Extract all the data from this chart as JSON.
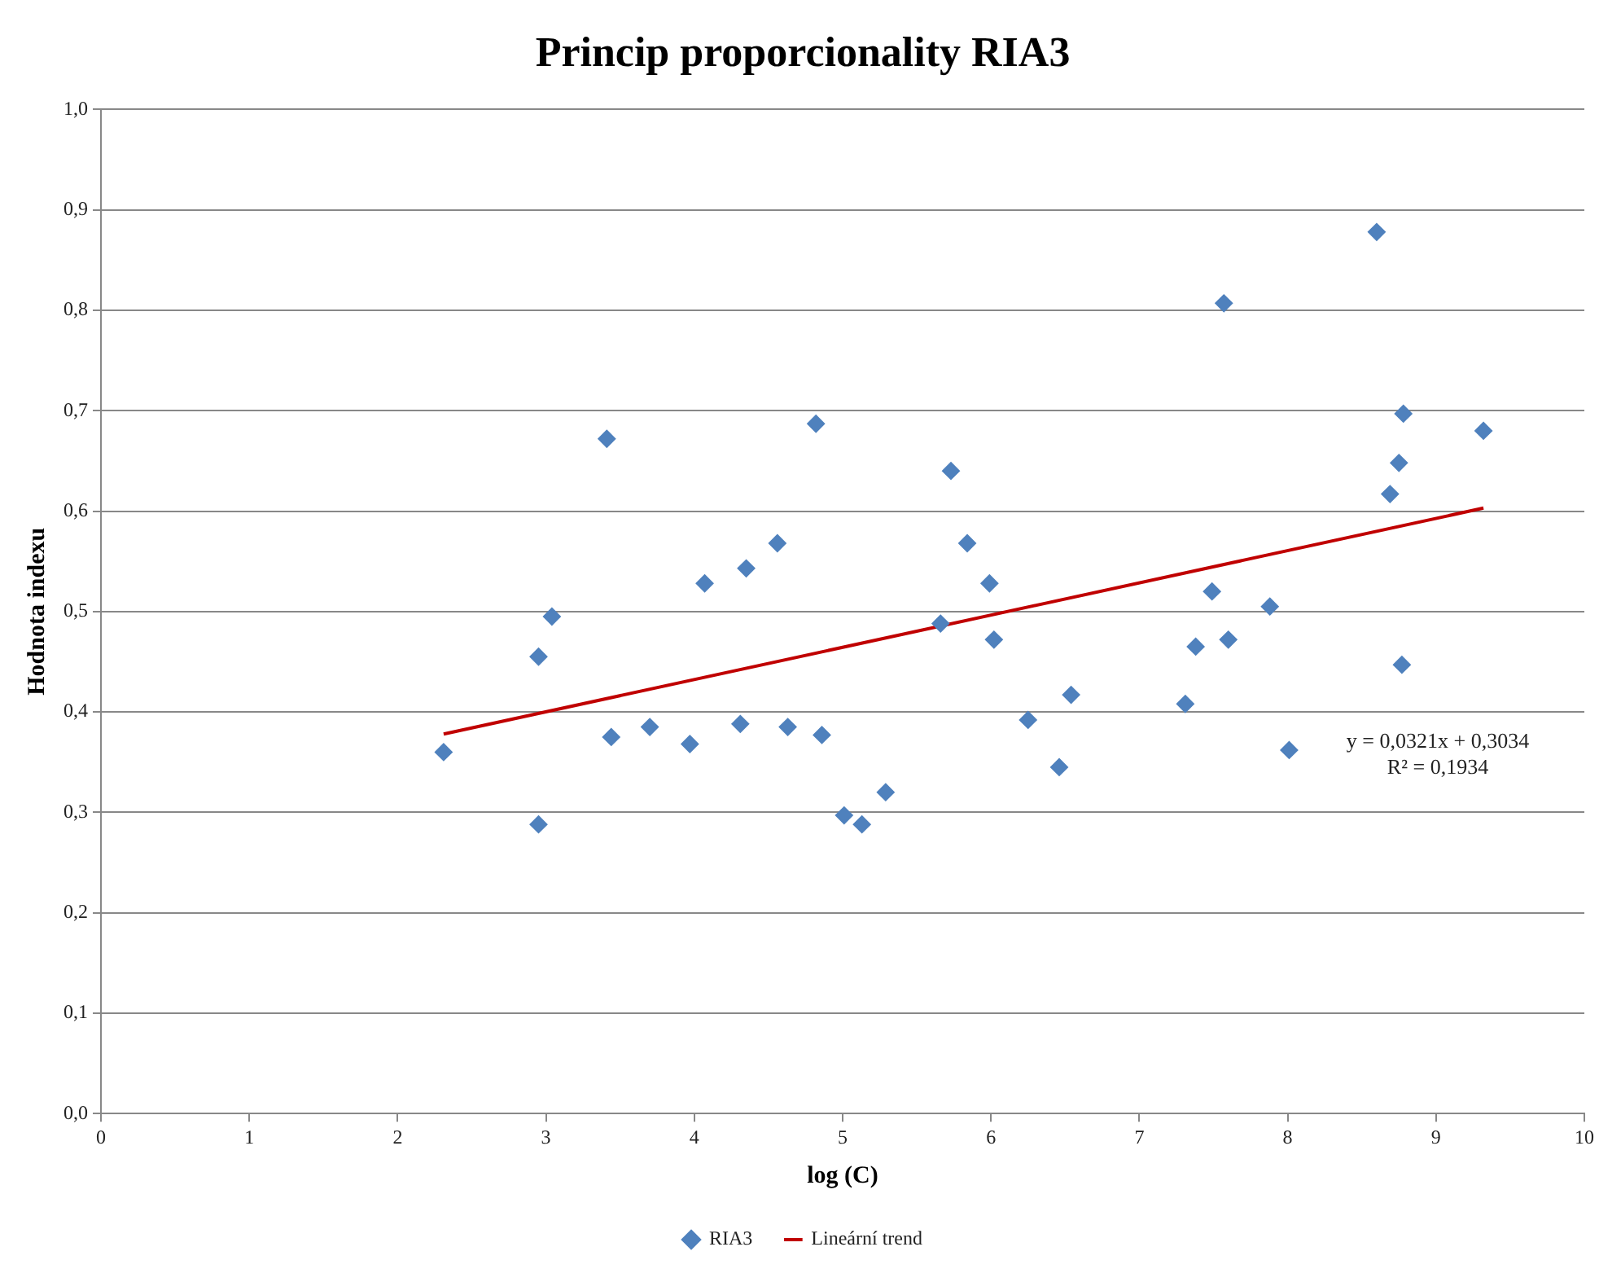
{
  "chart_data": {
    "type": "scatter",
    "title": "Princip proporcionality RIA3",
    "xlabel": "log (C)",
    "ylabel": "Hodnota indexu",
    "xlim": [
      0,
      10
    ],
    "xticks": [
      0,
      1,
      2,
      3,
      4,
      5,
      6,
      7,
      8,
      9,
      10
    ],
    "ylim": [
      0,
      1
    ],
    "yticks": [
      {
        "value": 0,
        "label": "0,0"
      },
      {
        "value": 0.1,
        "label": "0,1"
      },
      {
        "value": 0.2,
        "label": "0,2"
      },
      {
        "value": 0.3,
        "label": "0,3"
      },
      {
        "value": 0.4,
        "label": "0,4"
      },
      {
        "value": 0.5,
        "label": "0,5"
      },
      {
        "value": 0.6,
        "label": "0,6"
      },
      {
        "value": 0.7,
        "label": "0,7"
      },
      {
        "value": 0.8,
        "label": "0,8"
      },
      {
        "value": 0.9,
        "label": "0,9"
      },
      {
        "value": 1,
        "label": "1,0"
      }
    ],
    "grid": "y",
    "legend": "bottom",
    "series": [
      {
        "name": "RIA3",
        "color": "#4f81bd",
        "marker": "diamond",
        "x": [
          2.31,
          2.95,
          2.95,
          3.04,
          3.41,
          3.44,
          3.7,
          3.97,
          4.07,
          4.31,
          4.35,
          4.56,
          4.63,
          4.82,
          4.86,
          5.01,
          5.13,
          5.29,
          5.66,
          5.73,
          5.84,
          5.99,
          6.02,
          6.25,
          6.46,
          6.54,
          7.31,
          7.38,
          7.49,
          7.57,
          7.6,
          7.88,
          8.01,
          8.6,
          8.69,
          8.75,
          8.78,
          8.77,
          9.32
        ],
        "values": [
          0.36,
          0.288,
          0.455,
          0.495,
          0.672,
          0.375,
          0.385,
          0.368,
          0.528,
          0.388,
          0.543,
          0.568,
          0.385,
          0.687,
          0.377,
          0.297,
          0.288,
          0.32,
          0.488,
          0.64,
          0.568,
          0.528,
          0.472,
          0.392,
          0.345,
          0.417,
          0.408,
          0.465,
          0.52,
          0.807,
          0.472,
          0.505,
          0.362,
          0.878,
          0.617,
          0.648,
          0.697,
          0.447,
          0.68
        ]
      },
      {
        "name": "Lineární trend",
        "type": "line",
        "color": "#c00000",
        "marker": "none",
        "line_style": "solid",
        "x": [
          2.31,
          9.32
        ],
        "values": [
          0.378,
          0.603
        ]
      }
    ],
    "annotations": [
      "y = 0,0321x + 0,3034",
      "R² = 0,1934"
    ]
  }
}
